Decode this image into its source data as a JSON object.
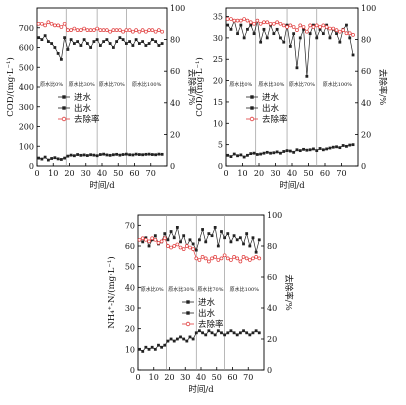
{
  "chart_data": [
    {
      "type": "line",
      "xlabel": "时间/d",
      "ylabel": "COD/(mg·L⁻¹)",
      "y2label": "去除率/%",
      "xlim": [
        0,
        80
      ],
      "ylim": [
        0,
        800
      ],
      "y2lim": [
        0,
        100
      ],
      "xticks": [
        "0",
        "10",
        "20",
        "30",
        "40",
        "50",
        "60",
        "70"
      ],
      "yticks": [
        "0",
        "100",
        "200",
        "300",
        "400",
        "500",
        "600",
        "700"
      ],
      "y2ticks": [
        "0",
        "20",
        "40",
        "60",
        "80",
        "100"
      ],
      "phase_boundaries": [
        18,
        37,
        55
      ],
      "phase_labels": [
        "原水比0%",
        "原水比30%",
        "原水比70%",
        "原水比100%"
      ],
      "legend": {
        "position": "center-left",
        "entries": [
          "进水",
          "出水",
          "去除率"
        ]
      },
      "series": [
        {
          "name": "进水",
          "axis": "left",
          "marker": "filled-square",
          "x": [
            1,
            3,
            5,
            7,
            9,
            11,
            13,
            15,
            17,
            19,
            21,
            23,
            25,
            27,
            29,
            31,
            33,
            35,
            37,
            39,
            41,
            43,
            45,
            47,
            49,
            51,
            53,
            55,
            57,
            59,
            61,
            63,
            65,
            67,
            69,
            71,
            73,
            75,
            77
          ],
          "y": [
            650,
            640,
            660,
            630,
            620,
            600,
            570,
            540,
            650,
            590,
            640,
            620,
            630,
            610,
            640,
            620,
            600,
            630,
            640,
            610,
            630,
            640,
            620,
            600,
            630,
            650,
            640,
            620,
            630,
            610,
            640,
            620,
            630,
            610,
            620,
            640,
            630,
            610,
            620
          ]
        },
        {
          "name": "出水",
          "axis": "left",
          "marker": "filled-square",
          "x": [
            1,
            3,
            5,
            7,
            9,
            11,
            13,
            15,
            17,
            19,
            21,
            23,
            25,
            27,
            29,
            31,
            33,
            35,
            37,
            39,
            41,
            43,
            45,
            47,
            49,
            51,
            53,
            55,
            57,
            59,
            61,
            63,
            65,
            67,
            69,
            71,
            73,
            75,
            77
          ],
          "y": [
            40,
            35,
            45,
            30,
            38,
            42,
            36,
            33,
            40,
            50,
            55,
            52,
            58,
            54,
            56,
            53,
            57,
            55,
            52,
            58,
            60,
            56,
            54,
            57,
            59,
            55,
            58,
            60,
            57,
            56,
            60,
            58,
            57,
            59,
            60,
            58,
            57,
            60,
            59
          ]
        },
        {
          "name": "去除率",
          "axis": "right",
          "marker": "open-circle",
          "x": [
            1,
            3,
            5,
            7,
            9,
            11,
            13,
            15,
            17,
            19,
            21,
            23,
            25,
            27,
            29,
            31,
            33,
            35,
            37,
            39,
            41,
            43,
            45,
            47,
            49,
            51,
            53,
            55,
            57,
            59,
            61,
            63,
            65,
            67,
            69,
            71,
            73,
            75,
            77
          ],
          "y": [
            90,
            90,
            89,
            91,
            90,
            89,
            89,
            88,
            90,
            86,
            86,
            87,
            86,
            86,
            87,
            86,
            86,
            86,
            87,
            86,
            86,
            86,
            85,
            86,
            86,
            86,
            85,
            86,
            86,
            85,
            86,
            85,
            86,
            85,
            86,
            86,
            85,
            86,
            85
          ]
        }
      ]
    },
    {
      "type": "line",
      "xlabel": "时间/d",
      "ylabel": "COD/(mg·L⁻¹)",
      "y2label": "去除率/%",
      "xlim": [
        0,
        80
      ],
      "ylim": [
        0,
        37
      ],
      "y2lim": [
        0,
        100
      ],
      "xticks": [
        "0",
        "10",
        "20",
        "30",
        "40",
        "50",
        "60",
        "70"
      ],
      "yticks": [
        "0",
        "5",
        "10",
        "15",
        "20",
        "25",
        "30",
        "35"
      ],
      "y2ticks": [
        "0",
        "20",
        "40",
        "60",
        "80",
        "100"
      ],
      "phase_boundaries": [
        18,
        37,
        55
      ],
      "phase_labels": [
        "原水比0%",
        "原水比30%",
        "原水比70%",
        "原水比100%"
      ],
      "legend": {
        "position": "center-left",
        "entries": [
          "进水",
          "出水",
          "去除率"
        ]
      },
      "series": [
        {
          "name": "进水",
          "axis": "left",
          "marker": "filled-square",
          "x": [
            1,
            3,
            5,
            7,
            9,
            11,
            13,
            15,
            17,
            19,
            21,
            23,
            25,
            27,
            29,
            31,
            33,
            35,
            37,
            39,
            41,
            43,
            45,
            47,
            49,
            51,
            53,
            55,
            57,
            59,
            61,
            63,
            65,
            67,
            69,
            71,
            73,
            75,
            77
          ],
          "y": [
            33,
            32,
            34,
            31,
            33,
            30,
            32,
            33,
            31,
            34,
            29,
            32,
            30,
            33,
            31,
            32,
            30,
            29,
            33,
            28,
            31,
            23,
            30,
            32,
            21,
            31,
            33,
            30,
            32,
            31,
            33,
            30,
            32,
            31,
            29,
            32,
            33,
            30,
            26
          ]
        },
        {
          "name": "出水",
          "axis": "left",
          "marker": "filled-square",
          "x": [
            1,
            3,
            5,
            7,
            9,
            11,
            13,
            15,
            17,
            19,
            21,
            23,
            25,
            27,
            29,
            31,
            33,
            35,
            37,
            39,
            41,
            43,
            45,
            47,
            49,
            51,
            53,
            55,
            57,
            59,
            61,
            63,
            65,
            67,
            69,
            71,
            73,
            75,
            77
          ],
          "y": [
            2.5,
            2.2,
            2.8,
            2.4,
            2.6,
            2.1,
            2.5,
            2.9,
            3.0,
            2.7,
            2.8,
            3.0,
            3.2,
            3.0,
            3.1,
            3.3,
            3.0,
            3.4,
            3.6,
            3.5,
            3.2,
            3.8,
            3.6,
            3.9,
            3.7,
            3.8,
            4.0,
            3.6,
            4.1,
            3.8,
            4.0,
            4.2,
            4.4,
            4.5,
            4.3,
            4.8,
            4.6,
            4.9,
            5.0
          ]
        },
        {
          "name": "去除率",
          "axis": "right",
          "marker": "open-circle",
          "x": [
            1,
            3,
            5,
            7,
            9,
            11,
            13,
            15,
            17,
            19,
            21,
            23,
            25,
            27,
            29,
            31,
            33,
            35,
            37,
            39,
            41,
            43,
            45,
            47,
            49,
            51,
            53,
            55,
            57,
            59,
            61,
            63,
            65,
            67,
            69,
            71,
            73,
            75,
            77
          ],
          "y": [
            93,
            93,
            92,
            92,
            92,
            93,
            92,
            91,
            90,
            92,
            90,
            91,
            91,
            90,
            90,
            91,
            90,
            89,
            88,
            89,
            88,
            86,
            89,
            88,
            85,
            89,
            88,
            89,
            88,
            89,
            88,
            87,
            87,
            86,
            85,
            86,
            84,
            84,
            83
          ]
        }
      ]
    },
    {
      "type": "line",
      "xlabel": "时间/d",
      "ylabel": "NH₄⁺-N/(mg·L⁻¹)",
      "y2label": "去除率/%",
      "xlim": [
        0,
        80
      ],
      "ylim": [
        0,
        75
      ],
      "y2lim": [
        0,
        100
      ],
      "xticks": [
        "0",
        "10",
        "20",
        "30",
        "40",
        "50",
        "60",
        "70"
      ],
      "yticks": [
        "0",
        "10",
        "20",
        "30",
        "40",
        "50",
        "60",
        "70"
      ],
      "y2ticks": [
        "0",
        "20",
        "40",
        "60",
        "80",
        "100"
      ],
      "phase_boundaries": [
        18,
        37,
        55
      ],
      "phase_labels": [
        "原水比0%",
        "原水比30%",
        "原水比70%",
        "原水比100%"
      ],
      "legend": {
        "position": "center-right",
        "entries": [
          "进水",
          "出水",
          "去除率"
        ]
      },
      "series": [
        {
          "name": "进水",
          "axis": "left",
          "marker": "filled-square",
          "x": [
            1,
            3,
            5,
            7,
            9,
            11,
            13,
            15,
            17,
            19,
            21,
            23,
            25,
            27,
            29,
            31,
            33,
            35,
            37,
            39,
            41,
            43,
            45,
            47,
            49,
            51,
            53,
            55,
            57,
            59,
            61,
            63,
            65,
            67,
            69,
            71,
            73,
            75,
            77
          ],
          "y": [
            63,
            62,
            64,
            60,
            63,
            65,
            61,
            62,
            66,
            63,
            67,
            64,
            69,
            62,
            65,
            60,
            63,
            61,
            58,
            63,
            68,
            62,
            66,
            65,
            69,
            60,
            67,
            64,
            66,
            62,
            65,
            63,
            64,
            61,
            66,
            60,
            64,
            57,
            63
          ]
        },
        {
          "name": "出水",
          "axis": "left",
          "marker": "filled-square",
          "x": [
            1,
            3,
            5,
            7,
            9,
            11,
            13,
            15,
            17,
            19,
            21,
            23,
            25,
            27,
            29,
            31,
            33,
            35,
            37,
            39,
            41,
            43,
            45,
            47,
            49,
            51,
            53,
            55,
            57,
            59,
            61,
            63,
            65,
            67,
            69,
            71,
            73,
            75,
            77
          ],
          "y": [
            10,
            9,
            11,
            10,
            11,
            10,
            12,
            11,
            12,
            14,
            15,
            14,
            15,
            16,
            15,
            14,
            16,
            15,
            18,
            19,
            18,
            17,
            19,
            18,
            17,
            19,
            18,
            17,
            18,
            19,
            18,
            17,
            18,
            19,
            18,
            17,
            18,
            19,
            18
          ]
        },
        {
          "name": "去除率",
          "axis": "right",
          "marker": "open-circle",
          "x": [
            1,
            3,
            5,
            7,
            9,
            11,
            13,
            15,
            17,
            19,
            21,
            23,
            25,
            27,
            29,
            31,
            33,
            35,
            37,
            39,
            41,
            43,
            45,
            47,
            49,
            51,
            53,
            55,
            57,
            59,
            61,
            63,
            65,
            67,
            69,
            71,
            73,
            75,
            77
          ],
          "y": [
            84,
            85,
            84,
            83,
            85,
            84,
            82,
            83,
            85,
            80,
            79,
            80,
            81,
            79,
            78,
            80,
            79,
            78,
            72,
            71,
            73,
            72,
            70,
            72,
            73,
            71,
            72,
            74,
            72,
            71,
            73,
            72,
            70,
            73,
            72,
            71,
            72,
            73,
            72
          ]
        }
      ]
    }
  ],
  "colors": {
    "inflow": "#222222",
    "outflow": "#222222",
    "removal": "#e03c3c",
    "axis": "#000000",
    "phase_line": "#9a9a9a"
  }
}
